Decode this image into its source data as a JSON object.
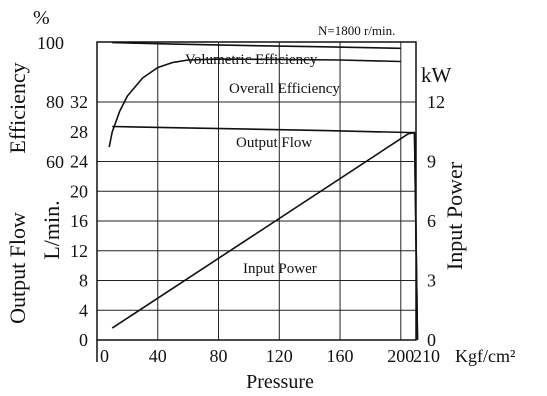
{
  "chart_data": {
    "type": "line",
    "condition": "N=1800 r/min.",
    "xlabel": "Pressure",
    "x_unit": "Kgf/cm²",
    "x_ticks": [
      "0",
      "40",
      "80",
      "120",
      "160",
      "200",
      "210"
    ],
    "xlim": [
      0,
      210
    ],
    "efficiency_axis": {
      "symbol": "%",
      "label": "Efficiency",
      "ticks": [
        "100",
        "80",
        "60"
      ],
      "ylim": [
        60,
        100
      ]
    },
    "flow_axis": {
      "label": "Output Flow",
      "unit": "L/min.",
      "ticks": [
        "0",
        "4",
        "8",
        "12",
        "16",
        "20",
        "24",
        "28",
        "32"
      ],
      "ylim": [
        0,
        32
      ]
    },
    "power_axis": {
      "unit": "kW",
      "label": "Input Power",
      "ticks": [
        "0",
        "3",
        "6",
        "9",
        "12"
      ],
      "ylim": [
        0,
        12
      ]
    },
    "series": [
      {
        "name": "Volumetric Efficiency",
        "axis": "efficiency",
        "points": [
          [
            10,
            99.8
          ],
          [
            50,
            99.3
          ],
          [
            100,
            98.8
          ],
          [
            150,
            98.4
          ],
          [
            200,
            97.9
          ]
        ]
      },
      {
        "name": "Overall Efficiency",
        "axis": "efficiency",
        "points": [
          [
            8,
            65
          ],
          [
            10,
            70
          ],
          [
            15,
            77
          ],
          [
            20,
            82
          ],
          [
            30,
            88
          ],
          [
            40,
            91.5
          ],
          [
            50,
            93.2
          ],
          [
            60,
            94
          ],
          [
            80,
            94.3
          ],
          [
            120,
            94.2
          ],
          [
            160,
            94
          ],
          [
            200,
            93.5
          ]
        ]
      },
      {
        "name": "Output Flow",
        "axis": "flow",
        "points": [
          [
            10,
            28.7
          ],
          [
            50,
            28.55
          ],
          [
            100,
            28.35
          ],
          [
            150,
            28.15
          ],
          [
            205,
            27.9
          ],
          [
            209,
            27.9
          ],
          [
            211,
            0
          ]
        ]
      },
      {
        "name": "Input Power",
        "axis": "power",
        "points": [
          [
            10,
            0.6
          ],
          [
            205,
            10.4
          ],
          [
            209,
            10.45
          ],
          [
            211,
            0
          ]
        ]
      }
    ]
  }
}
